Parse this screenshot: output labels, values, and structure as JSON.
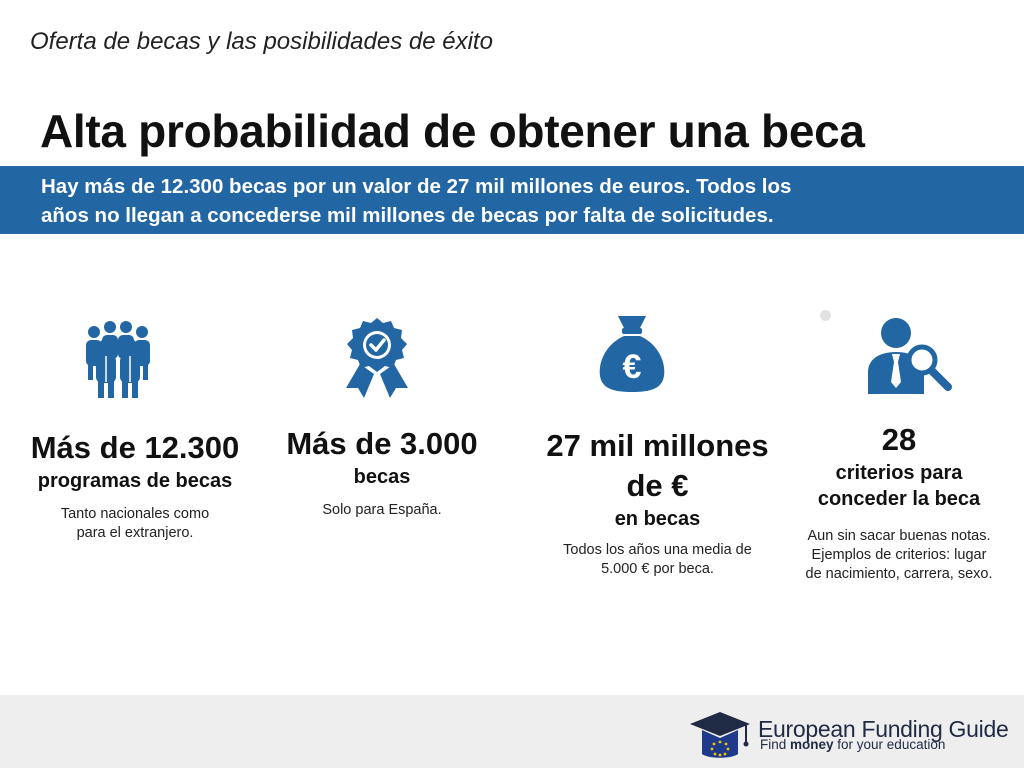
{
  "header": {
    "subtitle": "Oferta de becas y las posibilidades de éxito",
    "title": "Alta probabilidad de obtener una beca"
  },
  "banner": {
    "line1": "Hay más de 12.300 becas por un valor de 27 mil millones de euros. Todos los",
    "line2": "años no llegan a concederse mil millones de becas por falta de solicitudes."
  },
  "stats": [
    {
      "icon": "people-group-icon",
      "big": "Más de 12.300",
      "label": "programas de becas",
      "note1": "Tanto nacionales como",
      "note2": "para el extranjero."
    },
    {
      "icon": "award-badge-icon",
      "big": "Más de 3.000",
      "label": "becas",
      "note1": "Solo para España."
    },
    {
      "icon": "euro-money-bag-icon",
      "big1": "27 mil millones",
      "big2": "de €",
      "label": "en becas",
      "note1": "Todos los años una media de",
      "note2": "5.000 € por beca."
    },
    {
      "icon": "person-magnifier-icon",
      "big": "28",
      "label1": "criterios para",
      "label2": "conceder la beca",
      "note1": "Aun sin sacar buenas notas.",
      "note2": "Ejemplos de criterios: lugar",
      "note3": "de nacimiento, carrera, sexo."
    }
  ],
  "footer": {
    "logo_text_a": "European ",
    "logo_text_b": "Funding Guide",
    "tagline_a": "Find ",
    "tagline_b": "money",
    "tagline_c": " for your education",
    "logo_icon": "graduation-cap-eu-icon"
  },
  "colors": {
    "accent": "#2366a4",
    "icon": "#2366a4",
    "footer_bg": "#eeeeee"
  }
}
